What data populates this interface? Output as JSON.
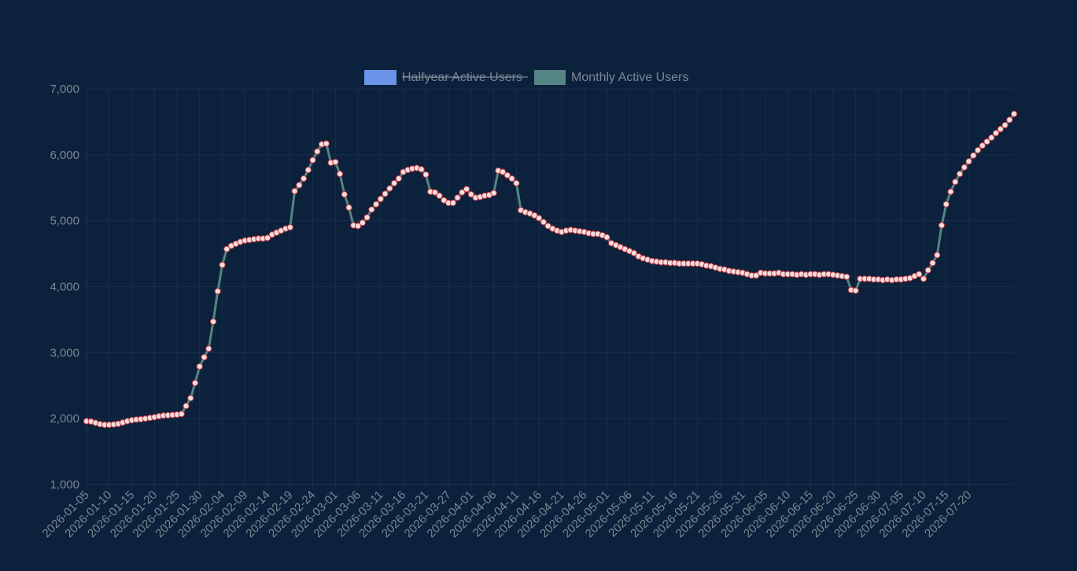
{
  "colors": {
    "background": "#0c213b",
    "grid": "#15304a",
    "axis": "#22384f",
    "text": "#7b8794",
    "halfyear": "#6b93e8",
    "monthly": "#558484",
    "point_fill": "#f4dede",
    "point_stroke": "#c23a44"
  },
  "legend": {
    "halfyear_label": "Halfyear Active Users",
    "halfyear_hidden": true,
    "monthly_label": "Monthly Active Users"
  },
  "chart_data": {
    "type": "line",
    "ylim": [
      1000,
      7000
    ],
    "yticks": [
      "1,000",
      "2,000",
      "3,000",
      "4,000",
      "5,000",
      "6,000",
      "7,000"
    ],
    "xlabels": [
      "2026-01-05",
      "2026-01-10",
      "2026-01-15",
      "2026-01-20",
      "2026-01-25",
      "2026-01-30",
      "2026-02-04",
      "2026-02-09",
      "2026-02-14",
      "2026-02-19",
      "2026-02-24",
      "2026-03-01",
      "2026-03-06",
      "2026-03-11",
      "2026-03-16",
      "2026-03-21",
      "2026-03-27",
      "2026-04-01",
      "2026-04-06",
      "2026-04-11",
      "2026-04-16",
      "2026-04-21",
      "2026-04-26",
      "2026-05-01",
      "2026-05-06",
      "2026-05-11",
      "2026-05-16",
      "2026-05-21",
      "2026-05-26",
      "2026-05-31",
      "2026-06-05",
      "2026-06-10",
      "2026-06-15",
      "2026-06-20",
      "2026-06-25",
      "2026-06-30",
      "2026-07-05",
      "2026-07-10",
      "2026-07-15",
      "2026-07-20"
    ],
    "series": [
      {
        "name": "Monthly Active Users",
        "values": [
          1960,
          1955,
          1935,
          1915,
          1905,
          1905,
          1910,
          1920,
          1940,
          1960,
          1975,
          1985,
          1990,
          2000,
          2010,
          2020,
          2035,
          2045,
          2050,
          2055,
          2060,
          2070,
          2190,
          2310,
          2540,
          2790,
          2930,
          3060,
          3470,
          3930,
          4330,
          4570,
          4620,
          4650,
          4680,
          4700,
          4710,
          4720,
          4730,
          4730,
          4740,
          4790,
          4820,
          4850,
          4880,
          4900,
          5450,
          5540,
          5640,
          5770,
          5920,
          6050,
          6160,
          6170,
          5880,
          5890,
          5710,
          5400,
          5200,
          4930,
          4920,
          4970,
          5050,
          5170,
          5250,
          5330,
          5410,
          5490,
          5570,
          5640,
          5740,
          5770,
          5790,
          5800,
          5780,
          5700,
          5440,
          5430,
          5380,
          5310,
          5270,
          5270,
          5350,
          5430,
          5480,
          5400,
          5350,
          5360,
          5380,
          5390,
          5420,
          5760,
          5740,
          5690,
          5640,
          5570,
          5160,
          5130,
          5110,
          5080,
          5040,
          4980,
          4920,
          4880,
          4850,
          4830,
          4850,
          4860,
          4850,
          4840,
          4830,
          4810,
          4800,
          4800,
          4780,
          4750,
          4660,
          4630,
          4600,
          4570,
          4540,
          4510,
          4460,
          4430,
          4410,
          4390,
          4380,
          4370,
          4370,
          4360,
          4360,
          4350,
          4350,
          4350,
          4350,
          4350,
          4340,
          4320,
          4310,
          4290,
          4270,
          4260,
          4240,
          4230,
          4220,
          4210,
          4190,
          4170,
          4170,
          4210,
          4200,
          4200,
          4200,
          4210,
          4190,
          4190,
          4190,
          4180,
          4190,
          4180,
          4190,
          4190,
          4180,
          4190,
          4190,
          4180,
          4170,
          4160,
          4150,
          3950,
          3940,
          4120,
          4120,
          4120,
          4110,
          4110,
          4100,
          4110,
          4100,
          4110,
          4110,
          4120,
          4130,
          4160,
          4190,
          4120,
          4250,
          4360,
          4480,
          4930,
          5250,
          5440,
          5590,
          5710,
          5810,
          5900,
          5990,
          6070,
          6140,
          6200,
          6260,
          6330,
          6390,
          6450,
          6530,
          6620
        ]
      },
      {
        "name": "Halfyear Active Users",
        "values": []
      }
    ]
  }
}
